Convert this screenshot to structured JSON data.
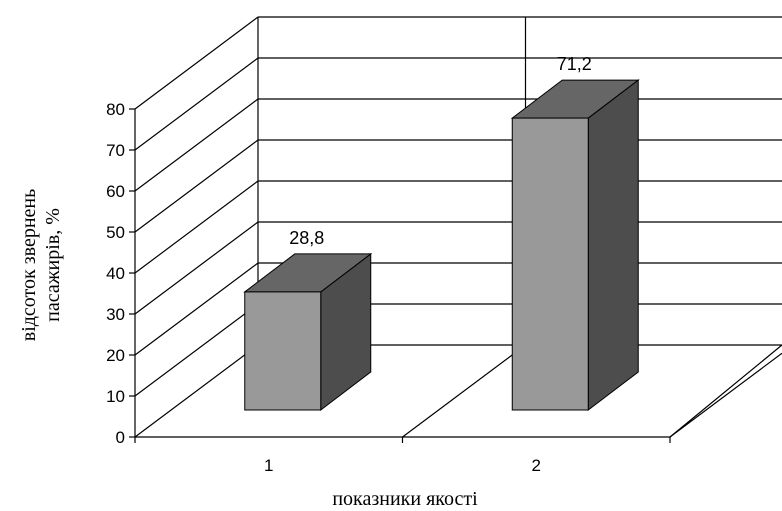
{
  "chart_data": {
    "type": "bar",
    "categories": [
      "1",
      "2"
    ],
    "values": [
      28.8,
      71.2
    ],
    "data_labels": [
      "28,8",
      "71,2"
    ],
    "title": "",
    "xlabel": "показники якості",
    "ylabel_lines": [
      "відсоток звернень",
      "пасажирів, %"
    ],
    "ylim": [
      0,
      80
    ],
    "yticks": [
      0,
      10,
      20,
      30,
      40,
      50,
      60,
      70,
      80
    ],
    "three_d": true,
    "grid": true,
    "legend": "none",
    "colors": {
      "bar_front": "#999999",
      "bar_top": "#666666",
      "bar_side": "#4d4d4d",
      "lines": "#000000"
    }
  }
}
